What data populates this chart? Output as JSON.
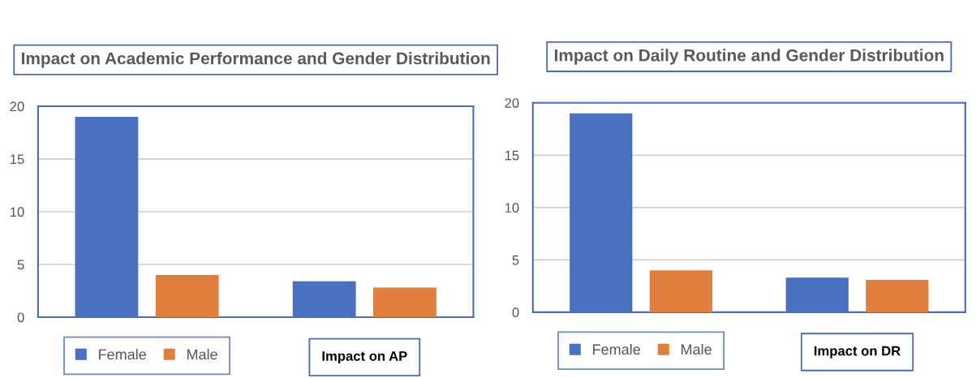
{
  "chart_data": [
    {
      "type": "bar",
      "title": "Impact on Academic Performance and Gender Distribution",
      "xlabel": "Impact on AP",
      "categories": [
        null,
        null
      ],
      "series": [
        {
          "name": "Female",
          "color": "#4a70c0",
          "values": [
            19,
            3.4
          ]
        },
        {
          "name": "Male",
          "color": "#e07f3e",
          "values": [
            4,
            2.8
          ]
        }
      ],
      "ylim": [
        0,
        20
      ],
      "yticks": [
        0,
        5,
        10,
        15,
        20
      ],
      "grid": "y",
      "legend": "bottom"
    },
    {
      "type": "bar",
      "title": "Impact on Daily Routine and Gender Distribution",
      "xlabel": "Impact on DR",
      "categories": [
        null,
        null
      ],
      "series": [
        {
          "name": "Female",
          "color": "#4a70c0",
          "values": [
            19,
            3.3
          ]
        },
        {
          "name": "Male",
          "color": "#e07f3e",
          "values": [
            4,
            3.1
          ]
        }
      ],
      "ylim": [
        0,
        20
      ],
      "yticks": [
        0,
        5,
        10,
        15,
        20
      ],
      "grid": "y",
      "legend": "bottom"
    }
  ]
}
